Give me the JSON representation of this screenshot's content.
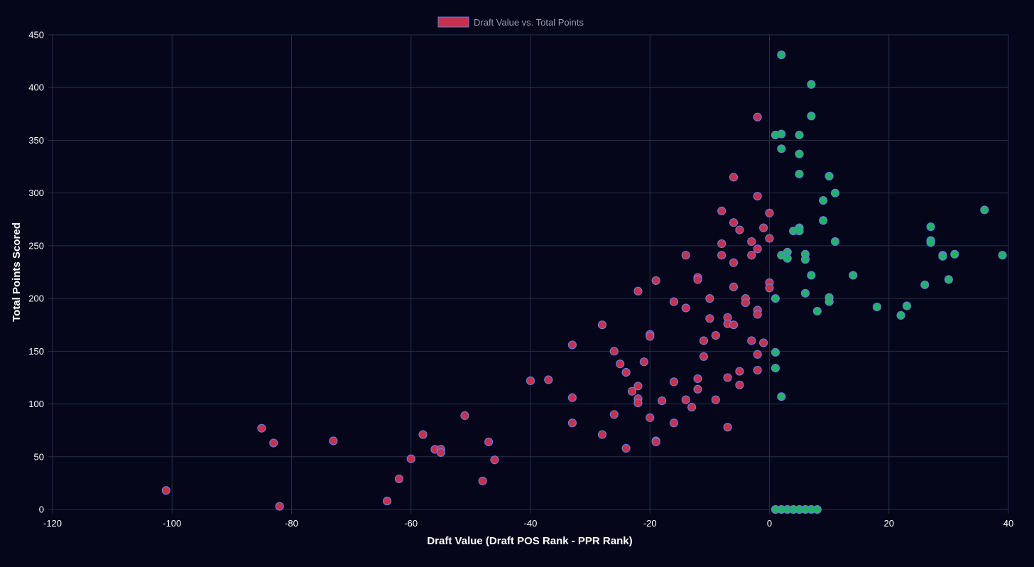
{
  "chart_data": {
    "type": "scatter",
    "xlabel": "Draft Value (Draft POS Rank - PPR Rank)",
    "ylabel": "Total Points Scored",
    "xlim": [
      -120,
      40
    ],
    "ylim": [
      0,
      450
    ],
    "xticks": [
      -120,
      -100,
      -80,
      -60,
      -40,
      -20,
      0,
      20,
      40
    ],
    "yticks": [
      0,
      50,
      100,
      150,
      200,
      250,
      300,
      350,
      400,
      450
    ],
    "grid": true,
    "legend": {
      "position": "top-center",
      "label": "Draft Value vs. Total Points"
    },
    "colors": {
      "negative": "#c8304e",
      "positive": "#20b46a",
      "marker_border": "#6b7bd6",
      "background": "#05061a",
      "grid": "#2a2d44"
    },
    "series": [
      {
        "name": "Draft Value vs. Total Points",
        "points": [
          [
            -101,
            18
          ],
          [
            -85,
            77
          ],
          [
            -83,
            63
          ],
          [
            -82,
            3
          ],
          [
            -73,
            65
          ],
          [
            -64,
            8
          ],
          [
            -62,
            29
          ],
          [
            -60,
            48
          ],
          [
            -58,
            71
          ],
          [
            -56,
            57
          ],
          [
            -55,
            57
          ],
          [
            -55,
            54
          ],
          [
            -51,
            89
          ],
          [
            -48,
            27
          ],
          [
            -47,
            64
          ],
          [
            -46,
            47
          ],
          [
            -40,
            122
          ],
          [
            -37,
            123
          ],
          [
            -33,
            156
          ],
          [
            -33,
            106
          ],
          [
            -33,
            82
          ],
          [
            -28,
            175
          ],
          [
            -28,
            71
          ],
          [
            -26,
            150
          ],
          [
            -26,
            90
          ],
          [
            -25,
            138
          ],
          [
            -24,
            130
          ],
          [
            -24,
            58
          ],
          [
            -23,
            112
          ],
          [
            -22,
            207
          ],
          [
            -22,
            117
          ],
          [
            -22,
            105
          ],
          [
            -22,
            101
          ],
          [
            -21,
            140
          ],
          [
            -20,
            166
          ],
          [
            -20,
            164
          ],
          [
            -20,
            87
          ],
          [
            -19,
            217
          ],
          [
            -19,
            65
          ],
          [
            -19,
            64
          ],
          [
            -18,
            103
          ],
          [
            -16,
            197
          ],
          [
            -16,
            121
          ],
          [
            -16,
            82
          ],
          [
            -14,
            241
          ],
          [
            -14,
            191
          ],
          [
            -14,
            104
          ],
          [
            -13,
            97
          ],
          [
            -12,
            220
          ],
          [
            -12,
            218
          ],
          [
            -12,
            124
          ],
          [
            -12,
            114
          ],
          [
            -11,
            160
          ],
          [
            -11,
            145
          ],
          [
            -10,
            200
          ],
          [
            -10,
            181
          ],
          [
            -9,
            165
          ],
          [
            -9,
            104
          ],
          [
            -8,
            283
          ],
          [
            -8,
            252
          ],
          [
            -8,
            241
          ],
          [
            -7,
            182
          ],
          [
            -7,
            176
          ],
          [
            -7,
            125
          ],
          [
            -7,
            78
          ],
          [
            -6,
            315
          ],
          [
            -6,
            272
          ],
          [
            -6,
            234
          ],
          [
            -6,
            211
          ],
          [
            -6,
            175
          ],
          [
            -5,
            265
          ],
          [
            -5,
            131
          ],
          [
            -5,
            118
          ],
          [
            -4,
            200
          ],
          [
            -4,
            196
          ],
          [
            -3,
            254
          ],
          [
            -3,
            241
          ],
          [
            -3,
            160
          ],
          [
            -2,
            372
          ],
          [
            -2,
            297
          ],
          [
            -2,
            247
          ],
          [
            -2,
            189
          ],
          [
            -2,
            185
          ],
          [
            -2,
            147
          ],
          [
            -2,
            132
          ],
          [
            -1,
            267
          ],
          [
            -1,
            158
          ],
          [
            0,
            281
          ],
          [
            0,
            257
          ],
          [
            0,
            215
          ],
          [
            0,
            210
          ],
          [
            1,
            355
          ],
          [
            1,
            200
          ],
          [
            1,
            149
          ],
          [
            1,
            134
          ],
          [
            1,
            0
          ],
          [
            2,
            431
          ],
          [
            2,
            356
          ],
          [
            2,
            342
          ],
          [
            2,
            241
          ],
          [
            2,
            107
          ],
          [
            2,
            0
          ],
          [
            3,
            244
          ],
          [
            3,
            238
          ],
          [
            3,
            0
          ],
          [
            4,
            264
          ],
          [
            4,
            0
          ],
          [
            5,
            355
          ],
          [
            5,
            337
          ],
          [
            5,
            318
          ],
          [
            5,
            267
          ],
          [
            5,
            264
          ],
          [
            5,
            0
          ],
          [
            6,
            242
          ],
          [
            6,
            237
          ],
          [
            6,
            205
          ],
          [
            6,
            0
          ],
          [
            7,
            403
          ],
          [
            7,
            373
          ],
          [
            7,
            222
          ],
          [
            7,
            0
          ],
          [
            8,
            188
          ],
          [
            8,
            0
          ],
          [
            9,
            293
          ],
          [
            9,
            274
          ],
          [
            10,
            316
          ],
          [
            10,
            201
          ],
          [
            10,
            197
          ],
          [
            11,
            300
          ],
          [
            11,
            254
          ],
          [
            14,
            222
          ],
          [
            18,
            192
          ],
          [
            22,
            184
          ],
          [
            23,
            193
          ],
          [
            26,
            213
          ],
          [
            27,
            268
          ],
          [
            27,
            255
          ],
          [
            27,
            253
          ],
          [
            29,
            241
          ],
          [
            29,
            240
          ],
          [
            30,
            218
          ],
          [
            31,
            242
          ],
          [
            36,
            284
          ],
          [
            39,
            241
          ]
        ]
      }
    ]
  }
}
